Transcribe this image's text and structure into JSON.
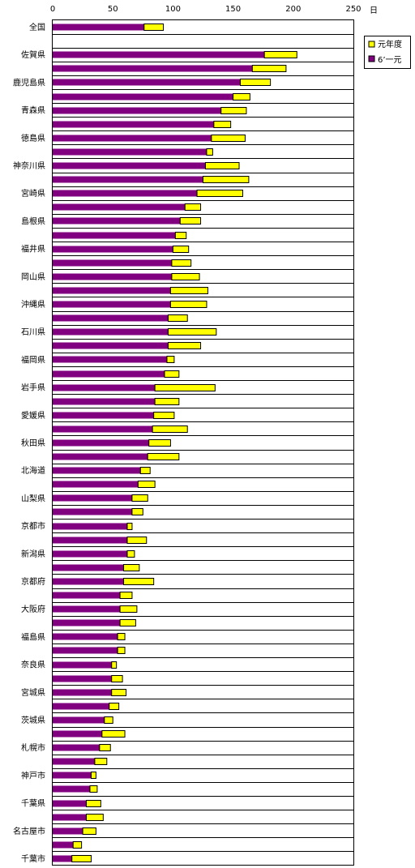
{
  "chart_data": {
    "type": "bar",
    "orientation": "horizontal",
    "stacked": true,
    "unit": "日",
    "xlim": [
      0,
      250
    ],
    "xticks": [
      0,
      50,
      100,
      150,
      200,
      250
    ],
    "grid": "horizontal separators between rows",
    "legend_position": "top-right",
    "categories": [
      "全国",
      "",
      "佐賀県",
      "",
      "鹿児島県",
      "",
      "青森県",
      "",
      "徳島県",
      "",
      "神奈川県",
      "",
      "宮崎県",
      "",
      "島根県",
      "",
      "福井県",
      "",
      "岡山県",
      "",
      "沖縄県",
      "",
      "石川県",
      "",
      "福岡県",
      "",
      "岩手県",
      "",
      "愛媛県",
      "",
      "秋田県",
      "",
      "北海道",
      "",
      "山梨県",
      "",
      "京都市",
      "",
      "新潟県",
      "",
      "京都府",
      "",
      "大阪府",
      "",
      "福島県",
      "",
      "奈良県",
      "",
      "宮城県",
      "",
      "茨城県",
      "",
      "札幌市",
      "",
      "神戸市",
      "",
      "千葉県",
      "",
      "名古屋市",
      "",
      "千葉市"
    ],
    "series": [
      {
        "name": "6’一元",
        "color": "#800080",
        "values": [
          76,
          null,
          176,
          166,
          156,
          150,
          140,
          134,
          132,
          128,
          127,
          125,
          120,
          110,
          106,
          102,
          100,
          99,
          99,
          98,
          98,
          96,
          96,
          96,
          95,
          93,
          85,
          85,
          84,
          83,
          80,
          79,
          73,
          71,
          66,
          66,
          62,
          62,
          62,
          59,
          59,
          56,
          56,
          56,
          54,
          54,
          49,
          49,
          49,
          47,
          43,
          41,
          39,
          35,
          32,
          31,
          28,
          28,
          25,
          17,
          16
        ]
      },
      {
        "name": "元年度",
        "color": "#ffff00",
        "values": [
          16,
          null,
          27,
          28,
          25,
          14,
          21,
          14,
          28,
          5,
          28,
          38,
          38,
          13,
          17,
          9,
          13,
          16,
          23,
          31,
          30,
          16,
          40,
          27,
          6,
          12,
          50,
          20,
          17,
          29,
          18,
          26,
          8,
          14,
          13,
          9,
          4,
          16,
          6,
          13,
          25,
          10,
          14,
          13,
          6,
          6,
          4,
          9,
          12,
          8,
          7,
          19,
          9,
          10,
          4,
          6,
          12,
          14,
          11,
          7,
          16
        ]
      }
    ]
  }
}
